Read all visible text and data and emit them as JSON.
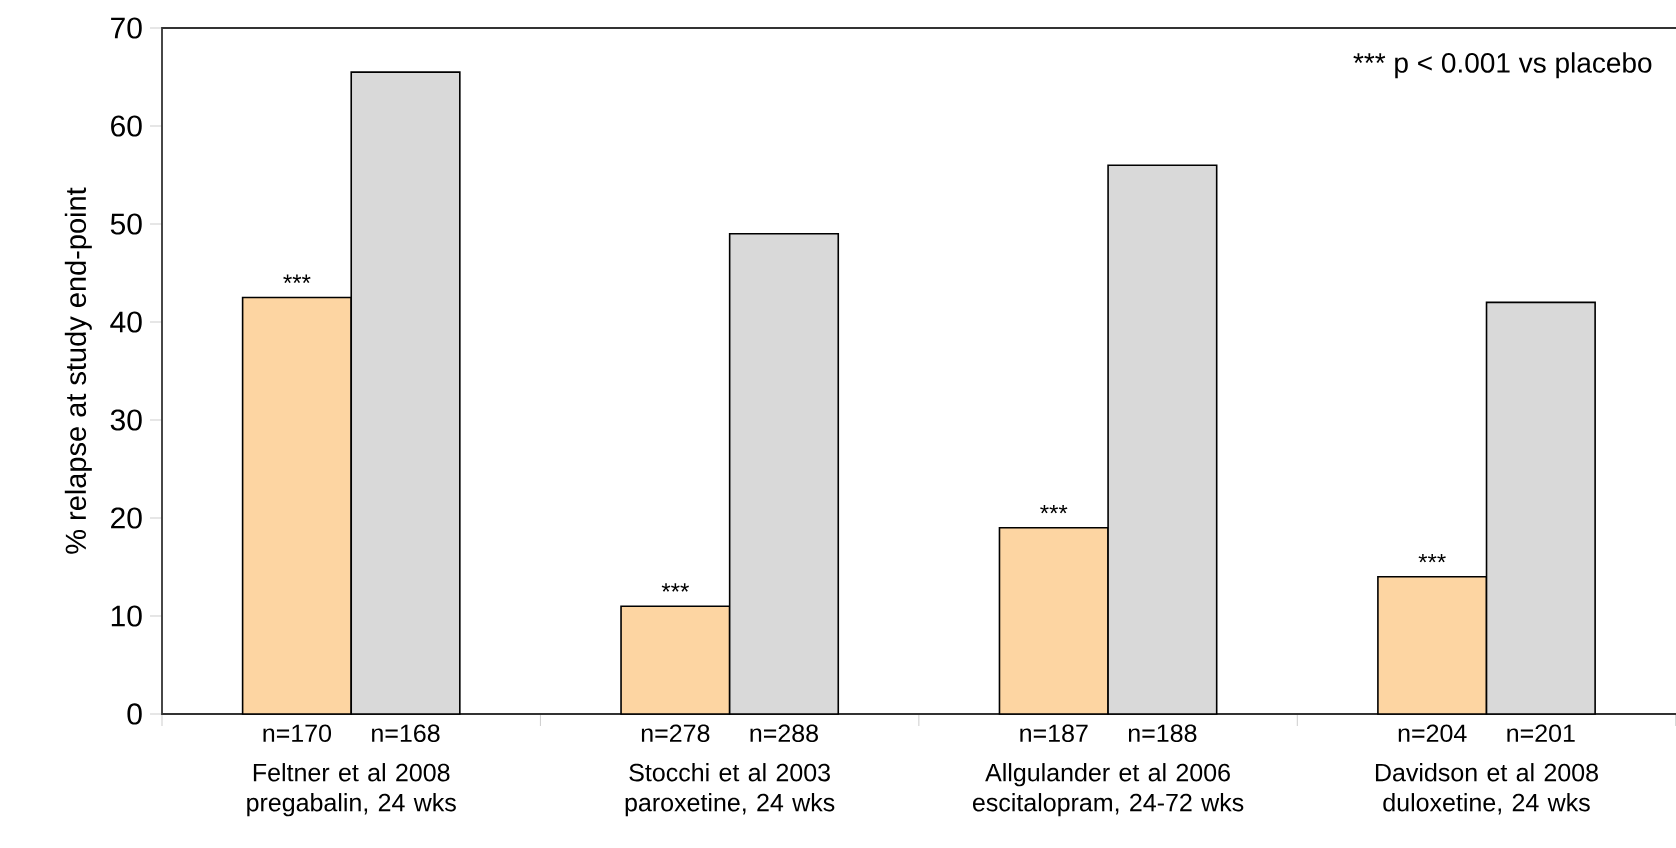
{
  "chart_data": {
    "type": "bar",
    "ylabel": "% relapse at study end-point",
    "categories": [
      "Feltner et al 2008 pregabalin, 24 wks",
      "Stocchi et al 2003 paroxetine, 24 wks",
      "Allgulander et al 2006 escitalopram, 24-72 wks",
      "Davidson et al 2008 duloxetine, 24 wks"
    ],
    "series": [
      {
        "color": "#fdd5a2",
        "values": [
          42.5,
          11,
          19,
          14
        ]
      },
      {
        "color": "#d9d9d9",
        "values": [
          65.5,
          49,
          56,
          42
        ]
      }
    ],
    "ylim": [
      0,
      70
    ],
    "yticks": [
      0,
      10,
      20,
      30,
      40,
      50,
      60,
      70
    ],
    "grid": false,
    "annotations": [
      "*** p < 0.001 vs placebo",
      {
        "text": "***",
        "x": "Feltner et al 2008 pregabalin, 24 wks",
        "y": 42.5
      },
      {
        "text": "***",
        "x": "Stocchi et al 2003 paroxetine, 24 wks",
        "y": 11
      },
      {
        "text": "***",
        "x": "Allgulander et al 2006 escitalopram, 24-72 wks",
        "y": 19
      },
      {
        "text": "***",
        "x": "Davidson et al 2008 duloxetine, 24 wks",
        "y": 14
      },
      {
        "text": "n=170",
        "x": "Feltner et al 2008 pregabalin, 24 wks",
        "y": 0
      },
      {
        "text": "n=168",
        "x": "Feltner et al 2008 pregabalin, 24 wks",
        "y": 0
      },
      {
        "text": "n=278",
        "x": "Stocchi et al 2003 paroxetine, 24 wks",
        "y": 0
      },
      {
        "text": "n=288",
        "x": "Stocchi et al 2003 paroxetine, 24 wks",
        "y": 0
      },
      {
        "text": "n=187",
        "x": "Allgulander et al 2006 escitalopram, 24-72 wks",
        "y": 0
      },
      {
        "text": "n=188",
        "x": "Allgulander et al 2006 escitalopram, 24-72 wks",
        "y": 0
      },
      {
        "text": "n=204",
        "x": "Davidson et al 2008 duloxetine, 24 wks",
        "y": 0
      },
      {
        "text": "n=201",
        "x": "Davidson et al 2008 duloxetine, 24 wks",
        "y": 0
      }
    ]
  }
}
